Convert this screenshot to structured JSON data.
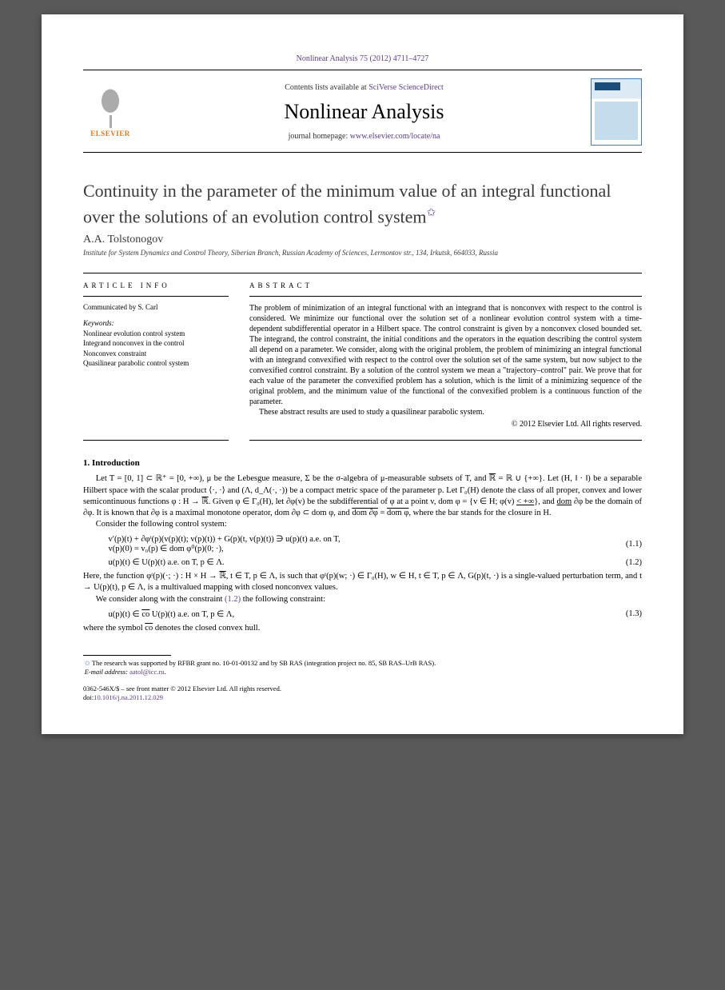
{
  "page_bg": "#595959",
  "header": {
    "citation": "Nonlinear Analysis 75 (2012) 4711–4727",
    "contents_prefix": "Contents lists available at ",
    "contents_link": "SciVerse ScienceDirect",
    "journal_name": "Nonlinear Analysis",
    "homepage_prefix": "journal homepage: ",
    "homepage_link": "www.elsevier.com/locate/na",
    "publisher_logo": "ELSEVIER",
    "cover_label": "Nonlinear Analysis"
  },
  "title": "Continuity in the parameter of the minimum value of an integral functional over the solutions of an evolution control system",
  "title_note_marker": "✩",
  "author": "A.A. Tolstonogov",
  "affiliation": "Institute for System Dynamics and Control Theory, Siberian Branch, Russian Academy of Sciences, Lermontov str., 134, Irkutsk, 664033, Russia",
  "info": {
    "head": "ARTICLE INFO",
    "communicated": "Communicated by S. Carl",
    "kw_head": "Keywords:",
    "keywords": [
      "Nonlinear evolution control system",
      "Integrand nonconvex in the control",
      "Nonconvex constraint",
      "Quasilinear parabolic control system"
    ]
  },
  "abstract": {
    "head": "ABSTRACT",
    "p1": "The problem of minimization of an integral functional with an integrand that is nonconvex with respect to the control is considered. We minimize our functional over the solution set of a nonlinear evolution control system with a time-dependent subdifferential operator in a Hilbert space. The control constraint is given by a nonconvex closed bounded set. The integrand, the control constraint, the initial conditions and the operators in the equation describing the control system all depend on a parameter. We consider, along with the original problem, the problem of minimizing an integral functional with an integrand convexified with respect to the control over the solution set of the same system, but now subject to the convexified control constraint. By a solution of the control system we mean a \"trajectory–control\" pair. We prove that for each value of the parameter the convexified problem has a solution, which is the limit of a minimizing sequence of the original problem, and the minimum value of the functional of the convexified problem is a continuous function of the parameter.",
    "p2": "These abstract results are used to study a quasilinear parabolic system.",
    "copyright": "© 2012 Elsevier Ltd. All rights reserved."
  },
  "section1": {
    "head": "1.  Introduction",
    "p1_pre": "Let T = [0, 1] ⊂ ℝ⁺ = [0, +∞), μ be the Lebesgue measure, Σ be the σ-algebra of μ-measurable subsets of T, and ",
    "p1_rbar": "ℝ",
    "p1_mid1": " = ℝ ∪ {+∞}. Let (H, ‖ · ‖) be a separable Hilbert space with the scalar product ⟨·, ·⟩ and (Λ, d_Λ(·, ·)) be a compact metric space of the parameter p. Let Γ₀(H) denote the class of all proper, convex and lower semicontinuous functions φ : H → ",
    "p1_rbar2": "ℝ",
    "p1_mid2": ". Given φ ∈ Γ₀(H), let ∂φ(v) be the subdifferential of φ at a point v, dom φ = {v ∈ H; φ(v) ",
    "p1_ineq": "< +∞",
    "p1_mid3": "}, and ",
    "p1_dom1": "dom",
    "p1_mid4": " ∂φ be the domain of ∂φ. It is known that ∂φ is a maximal monotone operator, dom ∂φ ⊂ dom φ, and ",
    "p1_dom2": "dom ∂φ",
    "p1_mid5": " = ",
    "p1_dom3": "dom φ",
    "p1_end": ", where the bar stands for the closure in H.",
    "p2": "Consider the following control system:",
    "eq1a": "v′(p)(t) + ∂φᵗ(p)(v(p)(t); v(p)(t)) + G(p)(t, v(p)(t)) ∋ u(p)(t)   a.e. on T,",
    "eq1b": "v(p)(0) = v₀(p) ∈ dom φ⁰(p)(0; ·),",
    "eq1_num": "(1.1)",
    "eq2": "u(p)(t) ∈ U(p)(t)   a.e. on T, p ∈ Λ.",
    "eq2_num": "(1.2)",
    "p3_pre": "Here, the function φᵗ(p)(·; ·) : H × H → ",
    "p3_rbar": "ℝ",
    "p3_end": ", t ∈ T, p ∈ Λ, is such that φᵗ(p)(w; ·) ∈ Γ₀(H), w ∈ H, t ∈ T, p ∈ Λ, G(p)(t, ·) is a single-valued perturbation term, and t → U(p)(t), p ∈ Λ, is a multivalued mapping with closed nonconvex values.",
    "p4_pre": "We consider along with the constraint ",
    "p4_link": "(1.2)",
    "p4_end": " the following constraint:",
    "eq3_pre": "u(p)(t) ∈ ",
    "eq3_co": "co",
    "eq3_end": " U(p)(t)   a.e. on T, p ∈ Λ,",
    "eq3_num": "(1.3)",
    "p5_pre": "where the symbol ",
    "p5_co": "co",
    "p5_end": " denotes the closed convex hull."
  },
  "footnotes": {
    "grant_marker": "✩",
    "grant": " The research was supported by RFBR grant no. 10-01-00132 and by SB RAS (integration project no. 85, SB RAS–UrB RAS).",
    "email_label": "E-mail address: ",
    "email": "aatol@icc.ru",
    "email_suffix": "."
  },
  "footer": {
    "line1": "0362-546X/$ – see front matter © 2012 Elsevier Ltd. All rights reserved.",
    "doi_label": "doi:",
    "doi": "10.1016/j.na.2011.12.029"
  }
}
